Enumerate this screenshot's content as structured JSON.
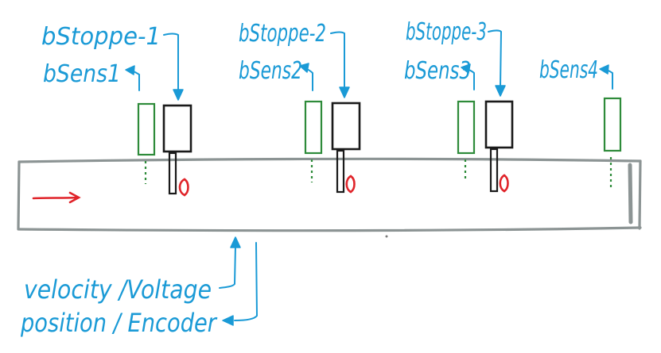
{
  "labels": {
    "stopper1": "bStoppe-1",
    "sens1": "bSens1",
    "stopper2": "bStoppe-2",
    "sens2": "bSens2",
    "stopper3": "bStoppe-3",
    "sens3": "bSens3",
    "sens4": "bSens4",
    "velocity": "velocity /Voltage",
    "position": "position / Encoder"
  },
  "colors": {
    "annotation": "#1a9ad6",
    "sensor": "#2e8b3a",
    "stopper": "#1a1a1a",
    "conveyor": "#8c9494",
    "motion": "#e0242a"
  }
}
